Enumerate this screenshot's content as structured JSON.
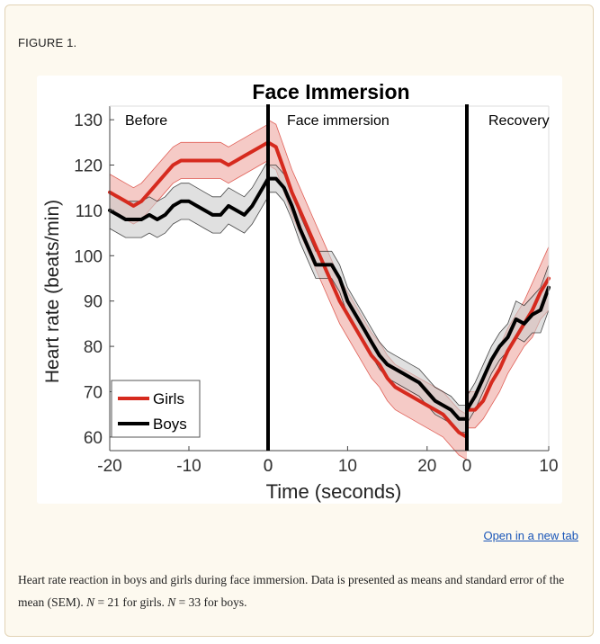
{
  "figure": {
    "label": "FIGURE 1.",
    "open_link": "Open in a new tab",
    "caption": {
      "text": "Heart rate reaction in boys and girls during face immersion. Data is presented as means and standard error of the mean (SEM).",
      "n_girls_var": "N",
      "n_girls_rest": " = 21 for girls.",
      "n_boys_var": "N",
      "n_boys_rest": " = 33 for boys."
    }
  },
  "chart_data": {
    "type": "line",
    "title": "Face Immersion",
    "xlabel": "Time (seconds)",
    "ylabel": "Heart rate (beats/min)",
    "ylim": [
      57,
      133
    ],
    "yticks": [
      60,
      70,
      80,
      90,
      100,
      110,
      120,
      130
    ],
    "grid": false,
    "legend_position": "bottom-left",
    "phases": [
      {
        "label": "Before",
        "xlim": [
          -20,
          0
        ],
        "xticks": [
          -20,
          -10,
          0
        ],
        "xtick_labels": [
          "-20",
          "-10",
          "0"
        ]
      },
      {
        "label": "Face immersion",
        "xlim": [
          0,
          25
        ],
        "xticks": [
          0,
          10,
          20
        ],
        "xtick_labels": [
          "0",
          "10",
          "20"
        ]
      },
      {
        "label": "Recovery",
        "xlim": [
          0,
          10
        ],
        "xticks": [
          0,
          10
        ],
        "xtick_labels": [
          "0",
          "10"
        ]
      }
    ],
    "series": [
      {
        "name": "Girls",
        "color": "#d62a1e",
        "band_color": "#f2b8b3",
        "phases": [
          {
            "x": [
              -20,
              -19,
              -18,
              -17,
              -16,
              -15,
              -14,
              -13,
              -12,
              -11,
              -10,
              -9,
              -8,
              -7,
              -6,
              -5,
              -4,
              -3,
              -2,
              -1,
              0
            ],
            "mean": [
              114,
              113,
              112,
              111,
              112,
              114,
              116,
              118,
              120,
              121,
              121,
              121,
              121,
              121,
              121,
              120,
              121,
              122,
              123,
              124,
              125
            ],
            "sem": [
              4,
              4,
              4,
              4,
              4,
              4,
              4,
              4,
              4,
              4,
              4,
              4,
              4,
              4,
              4,
              4,
              4,
              4,
              4,
              4,
              4
            ]
          },
          {
            "x": [
              0,
              1,
              2,
              3,
              4,
              5,
              6,
              7,
              8,
              9,
              10,
              11,
              12,
              13,
              14,
              15,
              16,
              17,
              18,
              19,
              20,
              21,
              22,
              23,
              24,
              25
            ],
            "mean": [
              125,
              124,
              119,
              114,
              110,
              106,
              102,
              98,
              94,
              90,
              87,
              84,
              81,
              78,
              76,
              73,
              71,
              70,
              69,
              68,
              67,
              66,
              65,
              63,
              61,
              60
            ],
            "sem": [
              5,
              5,
              5,
              5,
              5,
              5,
              5,
              5,
              5,
              5,
              5,
              5,
              5,
              5,
              5,
              5,
              5,
              5,
              5,
              5,
              5,
              5,
              5,
              5,
              5,
              5
            ]
          },
          {
            "x": [
              0,
              1,
              2,
              3,
              4,
              5,
              6,
              7,
              8,
              9,
              10
            ],
            "mean": [
              66,
              66,
              68,
              72,
              75,
              79,
              82,
              85,
              88,
              92,
              95
            ],
            "sem": [
              4,
              4,
              4,
              5,
              5,
              5,
              5,
              5,
              6,
              6,
              7
            ]
          }
        ]
      },
      {
        "name": "Boys",
        "color": "#000000",
        "band_color": "#cccccc",
        "phases": [
          {
            "x": [
              -20,
              -19,
              -18,
              -17,
              -16,
              -15,
              -14,
              -13,
              -12,
              -11,
              -10,
              -9,
              -8,
              -7,
              -6,
              -5,
              -4,
              -3,
              -2,
              -1,
              0
            ],
            "mean": [
              110,
              109,
              108,
              108,
              108,
              109,
              108,
              109,
              111,
              112,
              112,
              111,
              110,
              109,
              109,
              111,
              110,
              109,
              111,
              114,
              117
            ],
            "sem": [
              4,
              4,
              4,
              4,
              4,
              4,
              4,
              4,
              4,
              4,
              4,
              4,
              4,
              4,
              4,
              4,
              4,
              4,
              4,
              4,
              4
            ]
          },
          {
            "x": [
              0,
              1,
              2,
              3,
              4,
              5,
              6,
              7,
              8,
              9,
              10,
              11,
              12,
              13,
              14,
              15,
              16,
              17,
              18,
              19,
              20,
              21,
              22,
              23,
              24,
              25
            ],
            "mean": [
              117,
              117,
              115,
              111,
              106,
              102,
              98,
              98,
              98,
              95,
              90,
              87,
              84,
              81,
              78,
              76,
              75,
              74,
              73,
              72,
              70,
              68,
              67,
              66,
              64,
              64
            ],
            "sem": [
              3,
              3,
              3,
              3,
              3,
              3,
              3,
              3,
              3,
              3,
              3,
              3,
              3,
              3,
              3,
              3,
              3,
              3,
              3,
              3,
              3,
              3,
              3,
              3,
              3,
              3
            ]
          },
          {
            "x": [
              0,
              1,
              2,
              3,
              4,
              5,
              6,
              7,
              8,
              9,
              10
            ],
            "mean": [
              66,
              69,
              73,
              77,
              80,
              82,
              86,
              85,
              87,
              88,
              93
            ],
            "sem": [
              3,
              3,
              3,
              3,
              3,
              3,
              4,
              4,
              4,
              5,
              5
            ]
          }
        ]
      }
    ]
  }
}
